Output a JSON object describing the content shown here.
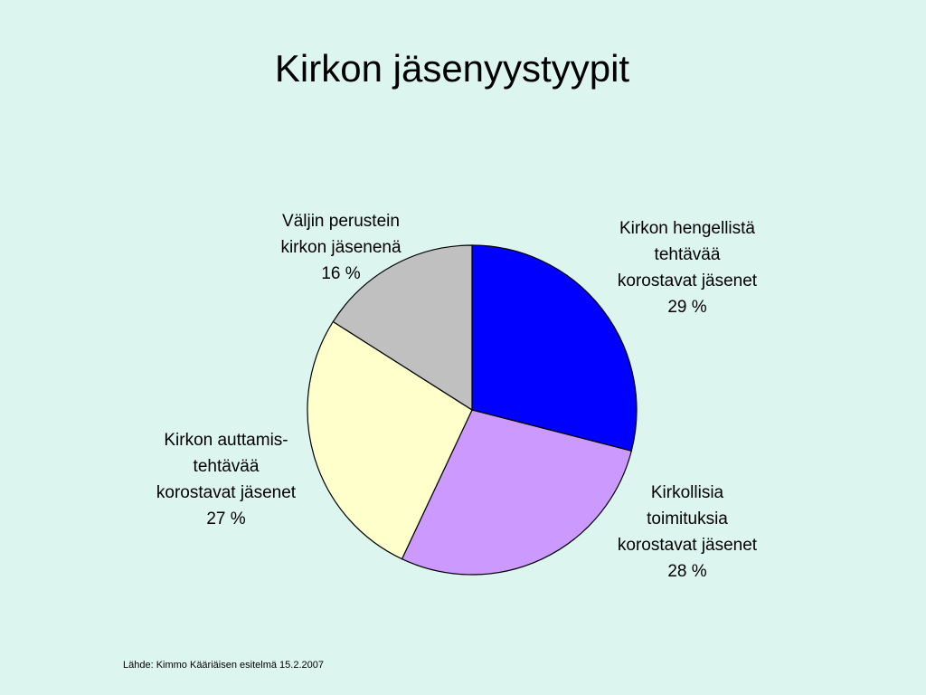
{
  "chart_data": {
    "type": "pie",
    "title": "Kirkon jäsenyystyypit",
    "categories": [
      "Kirkon hengellistä\ntehtävää\nkorostavat jäsenet",
      "Kirkollisia\ntoimituksia\nkorostavat jäsenet",
      "Kirkon auttamis-\ntehtävää\nkorostavat jäsenet",
      "Väljin perustein\nkirkon jäsenenä"
    ],
    "values": [
      29,
      28,
      27,
      16
    ],
    "value_labels": [
      "29 %",
      "28 %",
      "27 %",
      "16 %"
    ],
    "colors": [
      "#0000ff",
      "#cc99ff",
      "#ffffcc",
      "#c0c0c0"
    ],
    "source": "Lähde: Kimmo Kääriäisen esitelmä  15.2.2007"
  }
}
